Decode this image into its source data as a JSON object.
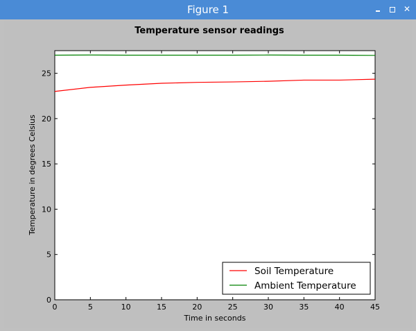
{
  "window": {
    "title": "Figure 1",
    "minimize_icon": "minimize-icon",
    "maximize_icon": "maximize-icon",
    "close_icon": "close-icon"
  },
  "chart_data": {
    "type": "line",
    "title": "Temperature sensor readings",
    "xlabel": "Time in seconds",
    "ylabel": "Temperature in degrees Celsius",
    "xlim": [
      0,
      45
    ],
    "ylim": [
      0,
      27.5
    ],
    "xticks": [
      0,
      5,
      10,
      15,
      20,
      25,
      30,
      35,
      40,
      45
    ],
    "yticks": [
      0,
      5,
      10,
      15,
      20,
      25
    ],
    "grid": false,
    "legend_position": "bottom-right",
    "series": [
      {
        "name": "Soil Temperature",
        "color": "#ff0000",
        "x": [
          0,
          5,
          10,
          15,
          20,
          25,
          30,
          35,
          40,
          45
        ],
        "y": [
          23.0,
          23.45,
          23.7,
          23.9,
          24.0,
          24.05,
          24.12,
          24.25,
          24.25,
          24.35
        ]
      },
      {
        "name": "Ambient Temperature",
        "color": "#008000",
        "x": [
          0,
          5,
          10,
          15,
          20,
          25,
          30,
          35,
          40,
          45
        ],
        "y": [
          27.0,
          27.02,
          27.0,
          27.0,
          27.0,
          27.0,
          27.02,
          27.0,
          27.0,
          26.98
        ]
      }
    ]
  }
}
